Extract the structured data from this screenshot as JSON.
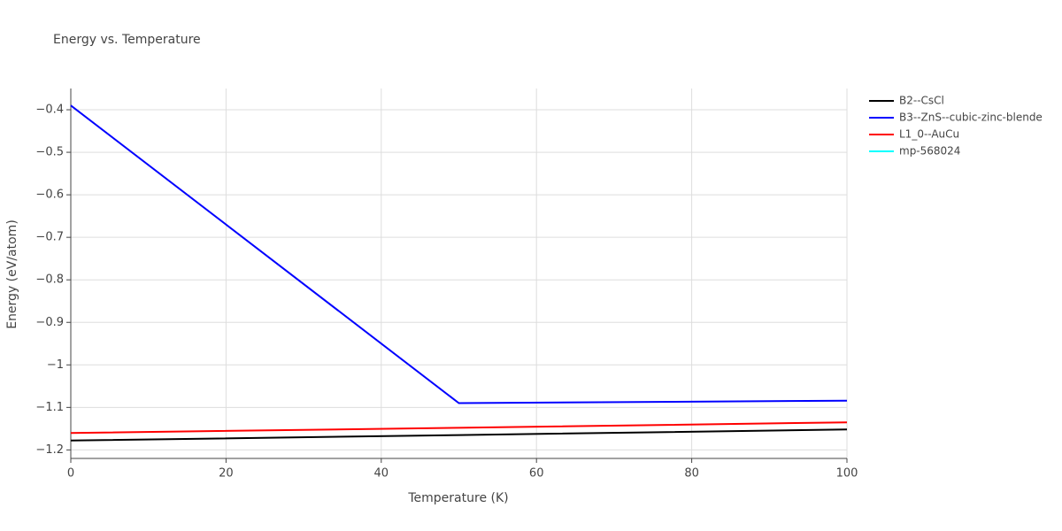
{
  "chart_data": {
    "type": "line",
    "title": "Energy vs. Temperature",
    "x_label": "Temperature (K)",
    "y_label": "Energy (eV/atom)",
    "x": [
      0,
      50,
      100
    ],
    "series": [
      {
        "name": "B2--CsCl",
        "color": "#000000",
        "values": [
          -1.178,
          -1.165,
          -1.152
        ]
      },
      {
        "name": "B3--ZnS--cubic-zinc-blende",
        "color": "#0000ff",
        "values": [
          -0.39,
          -1.09,
          -1.084
        ]
      },
      {
        "name": "L1_0--AuCu",
        "color": "#ff0000",
        "values": [
          -1.16,
          -1.148,
          -1.135
        ]
      },
      {
        "name": "mp-568024",
        "color": "#00ffff",
        "values": [
          null,
          null,
          null
        ]
      }
    ],
    "xlim": [
      0,
      100
    ],
    "xticks": [
      0,
      20,
      40,
      60,
      80,
      100
    ],
    "ylim": [
      -1.22,
      -0.35
    ],
    "yticks": [
      {
        "value": -1.2,
        "label": "−1.2"
      },
      {
        "value": -1.1,
        "label": "−1.1"
      },
      {
        "value": -1,
        "label": "−1"
      },
      {
        "value": -0.9,
        "label": "−0.9"
      },
      {
        "value": -0.8,
        "label": "−0.8"
      },
      {
        "value": -0.7,
        "label": "−0.7"
      },
      {
        "value": -0.6,
        "label": "−0.6"
      },
      {
        "value": -0.5,
        "label": "−0.5"
      },
      {
        "value": -0.4,
        "label": "−0.4"
      }
    ],
    "grid": true,
    "legend": "right"
  }
}
